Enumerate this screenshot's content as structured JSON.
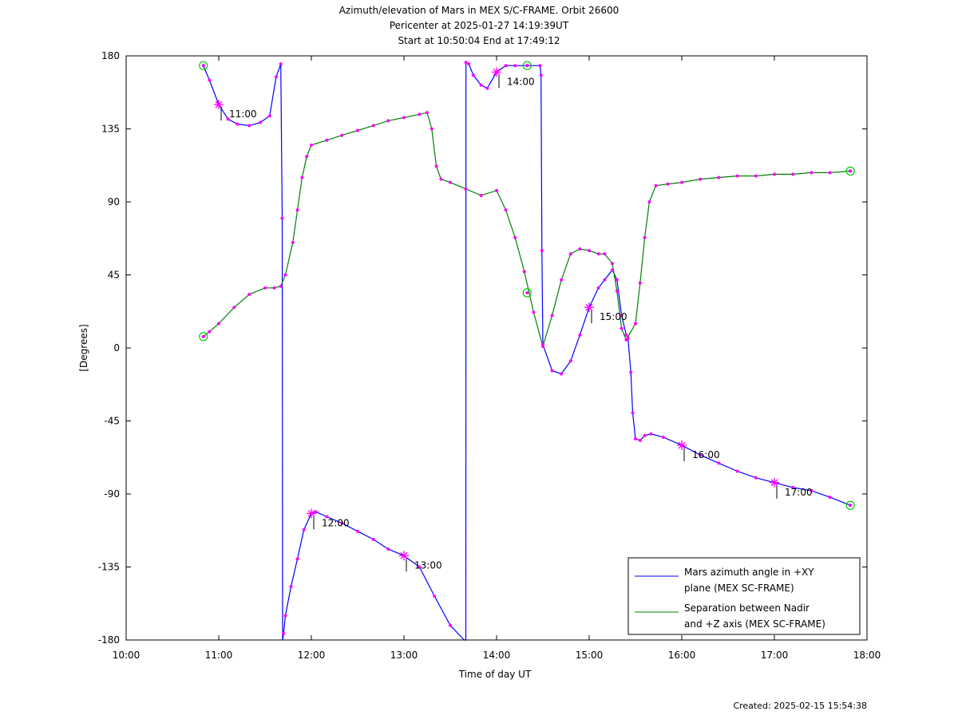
{
  "title_lines": [
    "Azimuth/elevation of Mars in MEX S/C-FRAME.  Orbit 26600",
    "Pericenter at 2025-01-27 14:19:39UT",
    "Start at 10:50:04 End at 17:49:12"
  ],
  "footer": {
    "created": "Created: 2025-02-15 15:54:38"
  },
  "chart_data": {
    "type": "line",
    "xlabel": "Time of day UT",
    "ylabel": "[Degrees]",
    "xlim": [
      10.0,
      18.0
    ],
    "ylim": [
      -180,
      180
    ],
    "x_tick_labels": [
      "10:00",
      "11:00",
      "12:00",
      "13:00",
      "14:00",
      "15:00",
      "16:00",
      "17:00",
      "18:00"
    ],
    "y_ticks": [
      180,
      135,
      90,
      45,
      0,
      -45,
      -90,
      -135,
      -180
    ],
    "x_units": "hours of day (UT)",
    "legend_position": "bottom-right",
    "marker_color": "#ff00ff",
    "endpoint_marker_color": "#00cc00",
    "series": [
      {
        "name_lines": [
          "Mars azimuth angle in +XY",
          "plane (MEX SC-FRAME)"
        ],
        "color": "#0000ff",
        "x": [
          10.834,
          10.9,
          11.0,
          11.1,
          11.2,
          11.33,
          11.45,
          11.55,
          11.62,
          11.67,
          11.685,
          11.69,
          11.7,
          11.72,
          11.78,
          11.85,
          11.92,
          12.0,
          12.05,
          12.167,
          12.33,
          12.5,
          12.67,
          12.83,
          13.0,
          13.167,
          13.33,
          13.5,
          13.65,
          13.668,
          13.67,
          13.7,
          13.75,
          13.833,
          13.9,
          14.0,
          14.1,
          14.2,
          14.33,
          14.47,
          14.48,
          14.49,
          14.5,
          14.6,
          14.7,
          14.8,
          14.9,
          15.0,
          15.1,
          15.167,
          15.25,
          15.3,
          15.35,
          15.4,
          15.42,
          15.45,
          15.47,
          15.5,
          15.55,
          15.6,
          15.667,
          15.8,
          16.0,
          16.2,
          16.4,
          16.6,
          16.8,
          17.0,
          17.2,
          17.4,
          17.6,
          17.82
        ],
        "y": [
          174,
          165,
          150,
          141,
          138,
          137,
          139,
          143,
          167,
          175,
          80,
          -180,
          -176,
          -165,
          -147,
          -130,
          -112,
          -102,
          -101,
          -104,
          -108,
          -113,
          -118,
          -124,
          -128,
          -135,
          -153,
          -171,
          -180,
          -180,
          176,
          175,
          168,
          162,
          160,
          170,
          174,
          174,
          174,
          174,
          168,
          60,
          2,
          -14,
          -16,
          -8,
          8,
          25,
          37,
          42,
          48,
          42,
          20,
          8,
          6,
          -15,
          -40,
          -56,
          -57,
          -54,
          -53,
          -55,
          -60,
          -66,
          -71,
          -76,
          -80,
          -83,
          -86,
          -88,
          -92,
          -97
        ]
      },
      {
        "name_lines": [
          "Separation between Nadir",
          "and +Z axis (MEX SC-FRAME)"
        ],
        "color": "#008000",
        "x": [
          10.834,
          10.9,
          11.0,
          11.167,
          11.33,
          11.5,
          11.6,
          11.67,
          11.72,
          11.8,
          11.85,
          11.9,
          11.95,
          12.0,
          12.167,
          12.33,
          12.5,
          12.67,
          12.83,
          13.0,
          13.167,
          13.25,
          13.3,
          13.35,
          13.4,
          13.5,
          13.667,
          13.833,
          14.0,
          14.1,
          14.2,
          14.3,
          14.4,
          14.5,
          14.6,
          14.7,
          14.8,
          14.9,
          15.0,
          15.1,
          15.167,
          15.25,
          15.3,
          15.35,
          15.4,
          15.5,
          15.55,
          15.6,
          15.65,
          15.72,
          15.85,
          16.0,
          16.2,
          16.4,
          16.6,
          16.8,
          17.0,
          17.2,
          17.4,
          17.6,
          17.82
        ],
        "y": [
          7,
          10,
          15,
          25,
          33,
          37,
          37,
          38,
          45,
          65,
          85,
          105,
          118,
          125,
          128,
          131,
          134,
          137,
          140,
          142,
          144,
          145,
          135,
          112,
          104,
          102,
          98,
          94,
          97,
          85,
          68,
          47,
          22,
          1,
          20,
          42,
          58,
          61,
          60,
          58,
          58,
          52,
          35,
          12,
          5,
          15,
          40,
          68,
          90,
          100,
          101,
          102,
          104,
          105,
          106,
          106,
          107,
          107,
          108,
          108,
          109
        ]
      }
    ],
    "hour_marker_labels": [
      {
        "text": "11:00",
        "x": 11.0,
        "y": 150
      },
      {
        "text": "12:00",
        "x": 12.0,
        "y": -102
      },
      {
        "text": "13:00",
        "x": 13.0,
        "y": -128
      },
      {
        "text": "14:00",
        "x": 14.0,
        "y": 170
      },
      {
        "text": "15:00",
        "x": 15.0,
        "y": 25
      },
      {
        "text": "16:00",
        "x": 16.0,
        "y": -60
      },
      {
        "text": "17:00",
        "x": 17.0,
        "y": -83
      }
    ],
    "endpoint_markers": [
      {
        "x": 10.834,
        "y": 174
      },
      {
        "x": 10.834,
        "y": 7
      },
      {
        "x": 14.33,
        "y": 174
      },
      {
        "x": 14.33,
        "y": 34
      },
      {
        "x": 17.82,
        "y": -97
      },
      {
        "x": 17.82,
        "y": 109
      }
    ]
  }
}
